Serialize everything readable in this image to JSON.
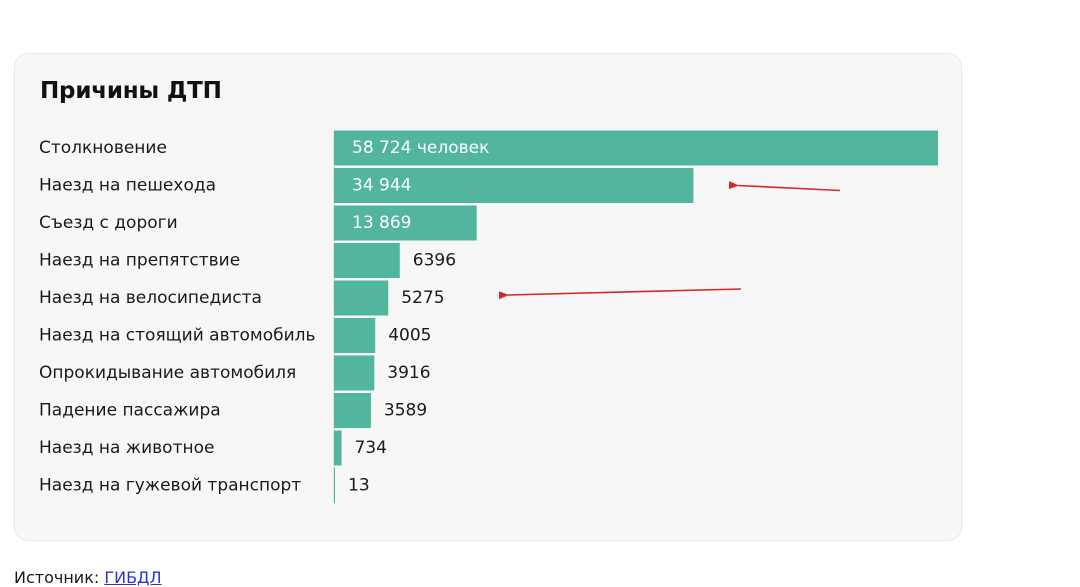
{
  "chart_data": {
    "type": "bar",
    "orientation": "horizontal",
    "title": "Причины ДТП",
    "categories": [
      "Столкновение",
      "Наезд на пешехода",
      "Съезд с дороги",
      "Наезд на препятствие",
      "Наезд на велосипедиста",
      "Наезд на стоящий автомобиль",
      "Опрокидывание автомобиля",
      "Падение пассажира",
      "Наезд на животное",
      "Наезд на гужевой транспорт"
    ],
    "values": [
      58724,
      34944,
      13869,
      6396,
      5275,
      4005,
      3916,
      3589,
      734,
      13
    ],
    "data_labels": [
      "58 724 человек",
      "34 944",
      "13 869",
      "6396",
      "5275",
      "4005",
      "3916",
      "3589",
      "734",
      "13"
    ],
    "xlim": [
      0,
      58724
    ],
    "grid": false,
    "legend": "none",
    "annotations": [
      {
        "type": "arrow",
        "points_to": "Наезд на пешехода",
        "color": "#d62828"
      },
      {
        "type": "arrow",
        "points_to": "Наезд на велосипедиста",
        "color": "#d62828"
      }
    ],
    "colors": {
      "bar": "#52b59e",
      "label_inside": "#ffffff",
      "label_outside": "#1a1a1a",
      "arrow": "#d62828"
    }
  },
  "source": {
    "prefix": "Источник:",
    "link_text": "ГИБДЛ"
  }
}
